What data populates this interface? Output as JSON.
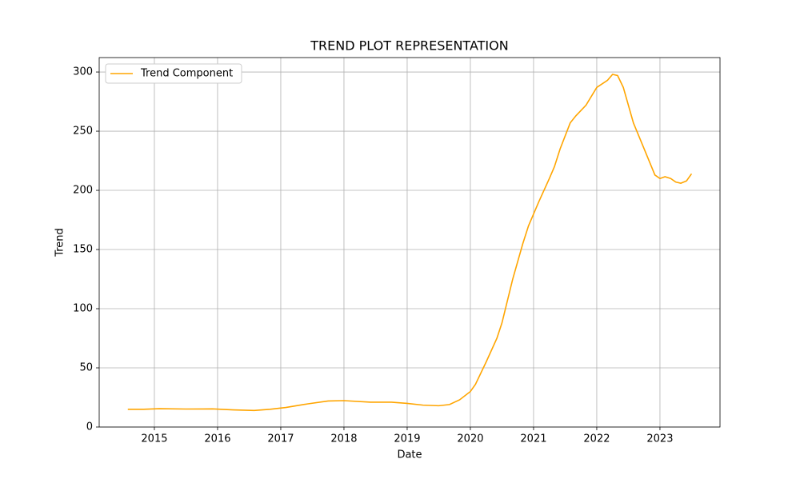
{
  "chart_data": {
    "type": "line",
    "title": "TREND PLOT REPRESENTATION",
    "x_label": "Date",
    "y_label": "Trend",
    "x": [
      2014.58,
      2014.83,
      2015.08,
      2015.5,
      2015.92,
      2016.25,
      2016.58,
      2016.83,
      2017.08,
      2017.42,
      2017.75,
      2018.0,
      2018.42,
      2018.75,
      2019.0,
      2019.25,
      2019.5,
      2019.67,
      2019.83,
      2020.0,
      2020.08,
      2020.25,
      2020.42,
      2020.5,
      2020.67,
      2020.83,
      2020.92,
      2021.08,
      2021.25,
      2021.33,
      2021.42,
      2021.58,
      2021.67,
      2021.83,
      2022.0,
      2022.17,
      2022.25,
      2022.33,
      2022.42,
      2022.58,
      2022.75,
      2022.92,
      2023.0,
      2023.08,
      2023.17,
      2023.25,
      2023.33,
      2023.42,
      2023.5
    ],
    "series": [
      {
        "name": "Trend Component",
        "color": "#ffa500",
        "values": [
          15,
          15,
          15.5,
          15.2,
          15.3,
          14.5,
          14,
          15,
          16.5,
          19.5,
          22,
          22.3,
          21,
          21,
          20,
          18.5,
          18,
          19,
          23,
          30,
          36,
          55,
          75,
          88,
          125,
          155,
          170,
          190,
          210,
          220,
          235,
          257,
          263,
          272,
          287,
          293,
          298,
          297,
          287,
          257,
          235,
          213,
          210,
          211.5,
          210,
          207,
          206,
          208,
          214
        ]
      }
    ],
    "xlim": [
      2014.127,
      2023.95
    ],
    "xticks": [
      2015,
      2016,
      2017,
      2018,
      2019,
      2020,
      2021,
      2022,
      2023
    ],
    "ylim": [
      0,
      312.2
    ],
    "yticks": [
      0,
      50,
      100,
      150,
      200,
      250,
      300
    ],
    "grid": true,
    "legend": "upper-left"
  }
}
